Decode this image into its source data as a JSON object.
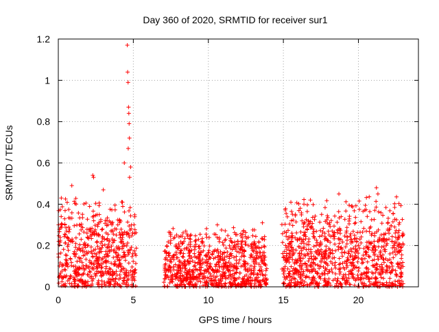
{
  "chart_data": {
    "type": "scatter",
    "title": "Day 360 of 2020, SRMTID for receiver sur1",
    "xlabel": "GPS time / hours",
    "ylabel": "SRMTID / TECUs",
    "xlim": [
      0,
      24
    ],
    "ylim": [
      0,
      1.2
    ],
    "xticks": [
      0,
      5,
      10,
      15,
      20
    ],
    "xtick_labels": [
      "0",
      "5",
      "10",
      "15",
      "20"
    ],
    "yticks": [
      0,
      0.2,
      0.4,
      0.6,
      0.8,
      1,
      1.2
    ],
    "ytick_labels": [
      "0",
      "0.2",
      "0.4",
      "0.6",
      "0.8",
      "1",
      "1.2"
    ],
    "grid": true,
    "marker": "plus",
    "series": [
      {
        "name": "SRMTID",
        "color": "#ff0000",
        "segments": [
          {
            "x_start": 0.0,
            "x_end": 5.2,
            "typical_range": [
              0.0,
              0.45
            ]
          },
          {
            "x_start": 7.0,
            "x_end": 13.9,
            "typical_range": [
              0.0,
              0.3
            ]
          },
          {
            "x_start": 14.9,
            "x_end": 23.0,
            "typical_range": [
              0.0,
              0.45
            ]
          }
        ],
        "notable_points": [
          {
            "x": 4.6,
            "y": 1.17
          },
          {
            "x": 4.62,
            "y": 1.04
          },
          {
            "x": 4.65,
            "y": 0.99
          },
          {
            "x": 4.68,
            "y": 0.87
          },
          {
            "x": 4.7,
            "y": 0.84
          },
          {
            "x": 4.72,
            "y": 0.79
          },
          {
            "x": 4.74,
            "y": 0.72
          },
          {
            "x": 4.66,
            "y": 0.67
          },
          {
            "x": 4.4,
            "y": 0.6
          },
          {
            "x": 4.82,
            "y": 0.58
          },
          {
            "x": 2.3,
            "y": 0.54
          },
          {
            "x": 2.35,
            "y": 0.53
          },
          {
            "x": 4.75,
            "y": 0.53
          },
          {
            "x": 0.9,
            "y": 0.49
          },
          {
            "x": 21.2,
            "y": 0.48
          },
          {
            "x": 18.7,
            "y": 0.45
          },
          {
            "x": 21.3,
            "y": 0.45
          },
          {
            "x": 3.0,
            "y": 0.47
          },
          {
            "x": 0.2,
            "y": 0.43
          },
          {
            "x": 16.8,
            "y": 0.42
          },
          {
            "x": 15.5,
            "y": 0.41
          },
          {
            "x": 10.6,
            "y": 0.3
          },
          {
            "x": 13.6,
            "y": 0.31
          }
        ]
      }
    ]
  }
}
